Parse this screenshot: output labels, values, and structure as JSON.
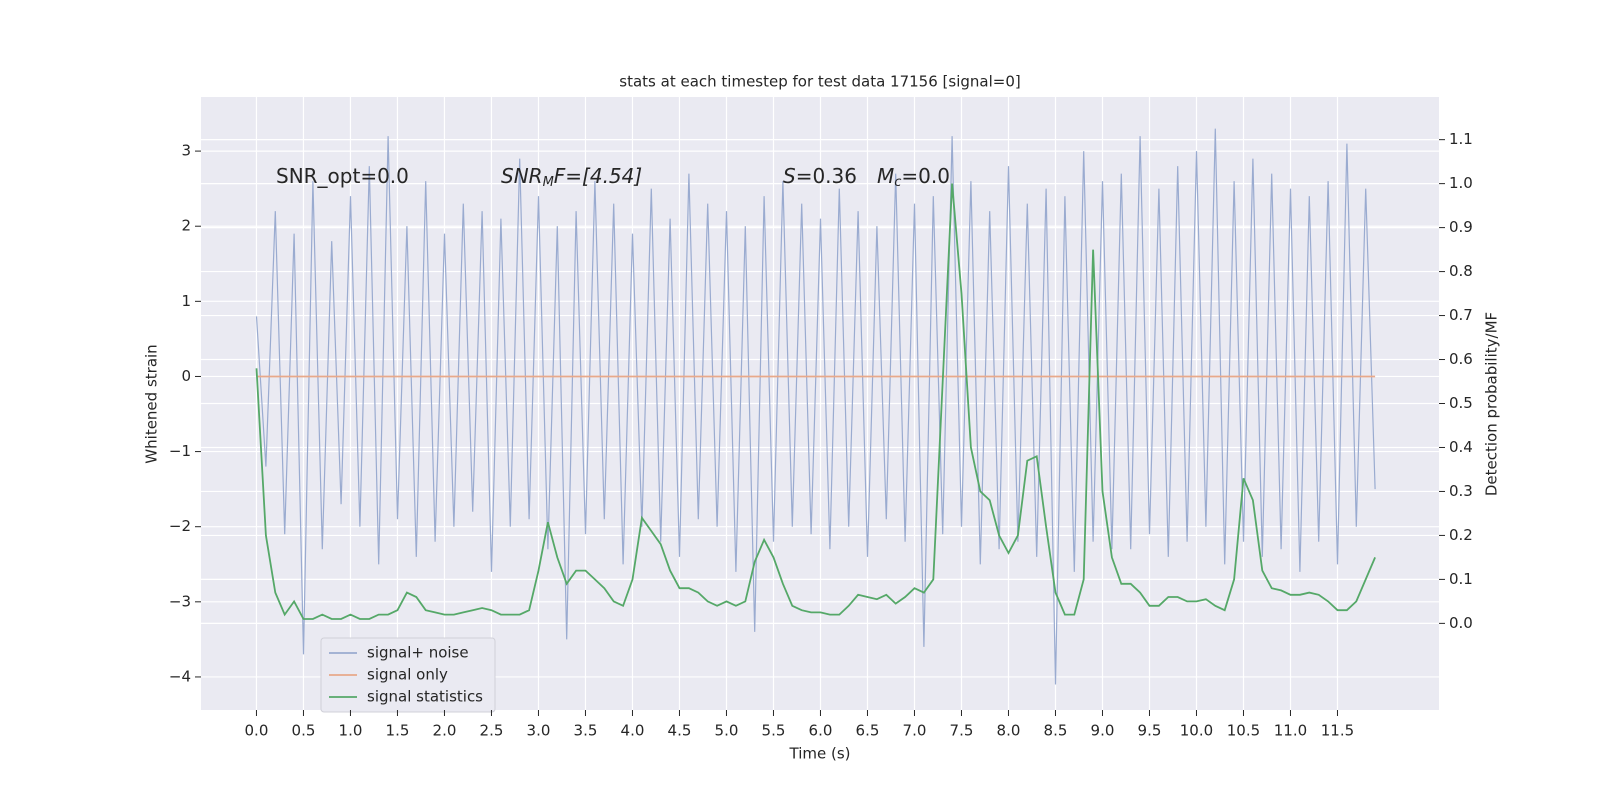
{
  "chart_data": {
    "type": "line",
    "title": "stats at each timestep for test data 17156 [signal=0]",
    "xlabel": "Time (s)",
    "ylabel": "Whitened strain",
    "y2label": "Detection probability/MF",
    "annotations": [
      [
        "SNR_opt=0.0"
      ],
      [
        "SNR",
        "M",
        "F=[4.54]"
      ],
      [
        "S",
        "=0.36"
      ],
      [
        "M",
        "c",
        "=0.0"
      ]
    ],
    "x": [
      0,
      0.1,
      0.2,
      0.3,
      0.4,
      0.5,
      0.6,
      0.7,
      0.8,
      0.9,
      1,
      1.1,
      1.2,
      1.3,
      1.4,
      1.5,
      1.6,
      1.7,
      1.8,
      1.9,
      2,
      2.1,
      2.2,
      2.3,
      2.4,
      2.5,
      2.6,
      2.7,
      2.8,
      2.9,
      3,
      3.1,
      3.2,
      3.3,
      3.4,
      3.5,
      3.6,
      3.7,
      3.8,
      3.9,
      4,
      4.1,
      4.2,
      4.3,
      4.4,
      4.5,
      4.6,
      4.7,
      4.8,
      4.9,
      5,
      5.1,
      5.2,
      5.3,
      5.4,
      5.5,
      5.6,
      5.7,
      5.8,
      5.9,
      6,
      6.1,
      6.2,
      6.3,
      6.4,
      6.5,
      6.6,
      6.7,
      6.8,
      6.9,
      7,
      7.1,
      7.2,
      7.3,
      7.4,
      7.5,
      7.6,
      7.7,
      7.8,
      7.9,
      8,
      8.1,
      8.2,
      8.3,
      8.4,
      8.5,
      8.6,
      8.7,
      8.8,
      8.9,
      9,
      9.1,
      9.2,
      9.3,
      9.4,
      9.5,
      9.6,
      9.7,
      9.8,
      9.9,
      10,
      10.1,
      10.2,
      10.3,
      10.4,
      10.5,
      10.6,
      10.7,
      10.8,
      10.9,
      11,
      11.1,
      11.2,
      11.3,
      11.4,
      11.5,
      11.6,
      11.7,
      11.8,
      11.9
    ],
    "series": [
      {
        "name": "signal+ noise",
        "color": "#9aabd0",
        "values": [
          0.8,
          -1.2,
          2.2,
          -2.1,
          1.9,
          -3.7,
          2.6,
          -2.3,
          1.8,
          -1.7,
          2.4,
          -2.0,
          2.8,
          -2.5,
          3.2,
          -1.9,
          2.0,
          -2.4,
          2.6,
          -2.2,
          1.9,
          -2.0,
          2.3,
          -1.8,
          2.2,
          -2.6,
          2.1,
          -2.0,
          2.9,
          -1.9,
          2.4,
          -2.3,
          2.0,
          -3.5,
          2.2,
          -2.1,
          2.6,
          -1.9,
          2.3,
          -2.5,
          1.9,
          -2.0,
          2.5,
          -2.2,
          2.1,
          -2.4,
          2.7,
          -1.9,
          2.3,
          -2.0,
          2.2,
          -2.6,
          2.0,
          -3.4,
          2.4,
          -2.2,
          2.6,
          -2.0,
          2.3,
          -2.1,
          2.1,
          -2.3,
          2.5,
          -2.0,
          2.2,
          -2.4,
          2.0,
          -1.9,
          2.7,
          -2.2,
          2.3,
          -3.6,
          2.4,
          -2.1,
          3.2,
          -2.0,
          2.6,
          -2.5,
          2.2,
          -2.3,
          2.8,
          -2.2,
          2.3,
          -2.4,
          2.5,
          -4.1,
          2.4,
          -2.6,
          3.0,
          -2.2,
          2.6,
          -2.3,
          2.7,
          -2.3,
          3.2,
          -2.1,
          2.5,
          -2.4,
          2.8,
          -2.2,
          3.0,
          -2.0,
          3.3,
          -2.5,
          2.6,
          -2.2,
          2.9,
          -2.4,
          2.7,
          -2.3,
          2.5,
          -2.6,
          2.4,
          -2.2,
          2.6,
          -2.5,
          3.1,
          -2.0,
          2.5,
          -1.5
        ]
      },
      {
        "name": "signal only",
        "color": "#e8a98a",
        "values": [
          0,
          0,
          0,
          0,
          0,
          0,
          0,
          0,
          0,
          0,
          0,
          0,
          0,
          0,
          0,
          0,
          0,
          0,
          0,
          0,
          0,
          0,
          0,
          0,
          0,
          0,
          0,
          0,
          0,
          0,
          0,
          0,
          0,
          0,
          0,
          0,
          0,
          0,
          0,
          0,
          0,
          0,
          0,
          0,
          0,
          0,
          0,
          0,
          0,
          0,
          0,
          0,
          0,
          0,
          0,
          0,
          0,
          0,
          0,
          0,
          0,
          0,
          0,
          0,
          0,
          0,
          0,
          0,
          0,
          0,
          0,
          0,
          0,
          0,
          0,
          0,
          0,
          0,
          0,
          0,
          0,
          0,
          0,
          0,
          0,
          0,
          0,
          0,
          0,
          0,
          0,
          0,
          0,
          0,
          0,
          0,
          0,
          0,
          0,
          0,
          0,
          0,
          0,
          0,
          0,
          0,
          0,
          0,
          0,
          0,
          0,
          0,
          0,
          0,
          0,
          0,
          0,
          0,
          0,
          0
        ]
      },
      {
        "name": "signal statistics",
        "color": "#55a868",
        "axis": "y2",
        "values": [
          0.58,
          0.2,
          0.07,
          0.02,
          0.05,
          0.01,
          0.01,
          0.02,
          0.01,
          0.01,
          0.02,
          0.01,
          0.01,
          0.02,
          0.02,
          0.03,
          0.07,
          0.06,
          0.03,
          0.025,
          0.02,
          0.02,
          0.025,
          0.03,
          0.035,
          0.03,
          0.02,
          0.02,
          0.02,
          0.03,
          0.12,
          0.23,
          0.15,
          0.09,
          0.12,
          0.12,
          0.1,
          0.08,
          0.05,
          0.04,
          0.1,
          0.24,
          0.21,
          0.18,
          0.12,
          0.08,
          0.08,
          0.07,
          0.05,
          0.04,
          0.05,
          0.04,
          0.05,
          0.14,
          0.19,
          0.15,
          0.09,
          0.04,
          0.03,
          0.025,
          0.025,
          0.02,
          0.02,
          0.04,
          0.065,
          0.06,
          0.055,
          0.065,
          0.045,
          0.06,
          0.08,
          0.07,
          0.1,
          0.55,
          1.0,
          0.75,
          0.4,
          0.3,
          0.28,
          0.2,
          0.16,
          0.2,
          0.37,
          0.38,
          0.22,
          0.07,
          0.02,
          0.02,
          0.1,
          0.85,
          0.3,
          0.15,
          0.09,
          0.09,
          0.07,
          0.04,
          0.04,
          0.06,
          0.06,
          0.05,
          0.05,
          0.055,
          0.04,
          0.03,
          0.1,
          0.33,
          0.28,
          0.12,
          0.08,
          0.075,
          0.065,
          0.065,
          0.07,
          0.065,
          0.05,
          0.03,
          0.03,
          0.05,
          0.1,
          0.15
        ]
      }
    ],
    "xlim": [
      -0.59,
      12.58
    ],
    "ylim": [
      -4.44,
      3.72
    ],
    "y2lim": [
      -0.197,
      1.197
    ],
    "xticks": [
      {
        "value": 0,
        "label": "0.0"
      },
      0.5,
      {
        "value": 1,
        "label": "1.0"
      },
      1.5,
      {
        "value": 2,
        "label": "2.0"
      },
      2.5,
      {
        "value": 3,
        "label": "3.0"
      },
      3.5,
      {
        "value": 4,
        "label": "4.0"
      },
      4.5,
      {
        "value": 5,
        "label": "5.0"
      },
      5.5,
      {
        "value": 6,
        "label": "6.0"
      },
      6.5,
      {
        "value": 7,
        "label": "7.0"
      },
      7.5,
      {
        "value": 8,
        "label": "8.0"
      },
      8.5,
      {
        "value": 9,
        "label": "9.0"
      },
      9.5,
      {
        "value": 10,
        "label": "10.0"
      },
      10.5,
      {
        "value": 11,
        "label": "11.0"
      },
      11.5
    ],
    "yticks": [
      {
        "value": -4,
        "label": "−4"
      },
      {
        "value": -3,
        "label": "−3"
      },
      {
        "value": -2,
        "label": "−2"
      },
      {
        "value": -1,
        "label": "−1"
      },
      0,
      1,
      2,
      3
    ],
    "y2ticks": [
      {
        "value": 0,
        "label": "0.0"
      },
      0.1,
      0.2,
      0.3,
      0.4,
      0.5,
      0.6,
      0.7,
      0.8,
      0.9,
      {
        "value": 1,
        "label": "1.0"
      },
      1.1
    ],
    "grid": true,
    "legend_loc": "lower left"
  }
}
